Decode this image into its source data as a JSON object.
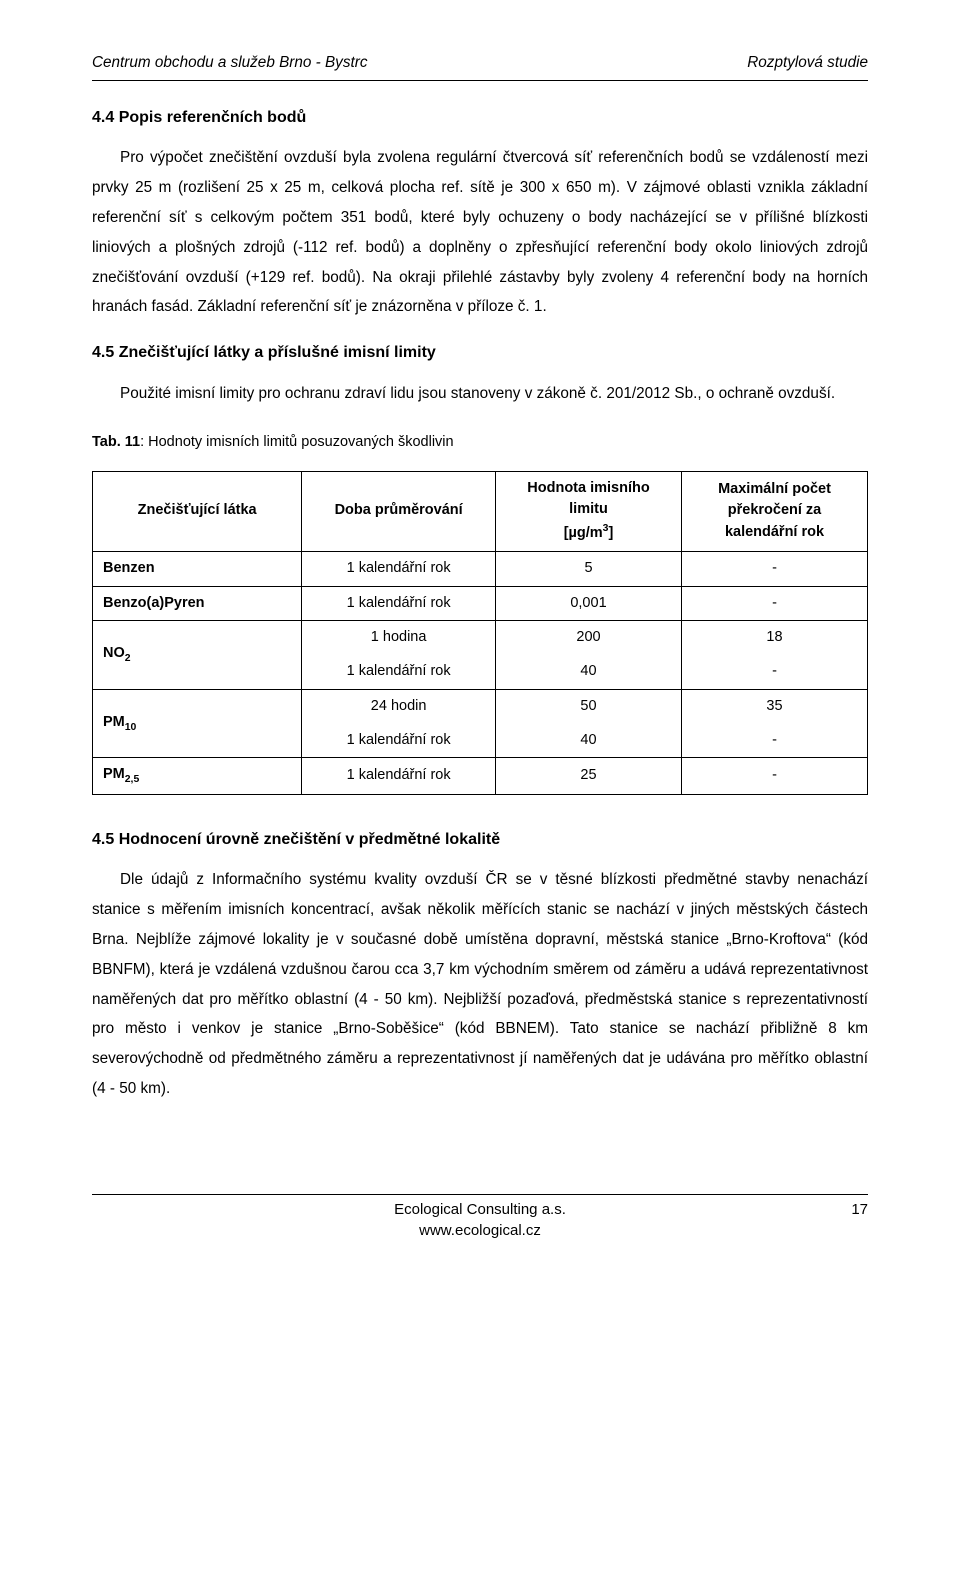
{
  "header": {
    "left": "Centrum obchodu a služeb Brno - Bystrc",
    "right": "Rozptylová studie"
  },
  "section44": {
    "title": "4.4 Popis referenčních bodů",
    "para": "Pro výpočet znečištění ovzduší byla zvolena regulární čtvercová síť referenčních bodů se vzdáleností mezi prvky 25 m (rozlišení 25 x 25 m, celková plocha ref. sítě je 300 x 650 m). V zájmové oblasti vznikla základní referenční síť s celkovým počtem 351 bodů, které byly ochuzeny o body nacházející se v přílišné blízkosti liniových a plošných zdrojů (-112 ref. bodů) a doplněny o zpřesňující referenční body okolo liniových zdrojů znečišťování ovzduší (+129 ref. bodů). Na okraji přilehlé zástavby byly zvoleny 4 referenční body na horních hranách fasád. Základní referenční síť je znázorněna v příloze č. 1."
  },
  "section45a": {
    "title": "4.5  Znečišťující látky a příslušné imisní limity",
    "para": "Použité imisní limity pro ochranu zdraví lidu jsou stanoveny v zákoně č. 201/2012 Sb., o ochraně ovzduší."
  },
  "table": {
    "caption_bold": "Tab. 11",
    "caption_rest": ": Hodnoty imisních limitů posuzovaných škodlivin",
    "headers": {
      "c1": "Znečišťující látka",
      "c2": "Doba průměrování",
      "c3_l1": "Hodnota imisního",
      "c3_l2": "limitu",
      "c3_l3_a": "[µg/m",
      "c3_l3_b": "3",
      "c3_l3_c": "]",
      "c4_l1": "Maximální počet",
      "c4_l2": "překročení za",
      "c4_l3": "kalendářní rok"
    },
    "rows": [
      {
        "pollutant_html": "Benzen",
        "span": 1,
        "sub": [
          {
            "period": "1 kalendářní rok",
            "value": "5",
            "max": "-"
          }
        ]
      },
      {
        "pollutant_html": "Benzo(a)Pyren",
        "span": 1,
        "sub": [
          {
            "period": "1 kalendářní rok",
            "value": "0,001",
            "max": "-"
          }
        ]
      },
      {
        "pollutant_html": "NO<sub>2</sub>",
        "span": 2,
        "sub": [
          {
            "period": "1 hodina",
            "value": "200",
            "max": "18"
          },
          {
            "period": "1 kalendářní rok",
            "value": "40",
            "max": "-"
          }
        ]
      },
      {
        "pollutant_html": "PM<sub>10</sub>",
        "span": 2,
        "sub": [
          {
            "period": "24 hodin",
            "value": "50",
            "max": "35"
          },
          {
            "period": "1 kalendářní rok",
            "value": "40",
            "max": "-"
          }
        ]
      },
      {
        "pollutant_html": "PM<sub>2,5</sub>",
        "span": 1,
        "sub": [
          {
            "period": "1 kalendářní rok",
            "value": "25",
            "max": "-"
          }
        ]
      }
    ]
  },
  "section45b": {
    "title": "4.5 Hodnocení úrovně znečištění v předmětné lokalitě",
    "para": "Dle údajů z Informačního systému kvality ovzduší ČR se v těsné blízkosti předmětné stavby nenachází stanice s měřením imisních koncentrací, avšak několik měřících stanic se nachází v jiných městských částech Brna. Nejblíže zájmové lokality je v současné době umístěna dopravní, městská stanice „Brno-Kroftova“ (kód BBNFM), která je vzdálená vzdušnou čarou cca 3,7 km východním směrem od záměru a udává reprezentativnost naměřených dat pro měřítko oblastní (4 - 50 km). Nejbližší pozaďová, předměstská stanice s reprezentativností pro město i venkov je stanice „Brno-Soběšice“ (kód BBNEM). Tato stanice se nachází přibližně 8 km severovýchodně od předmětného záměru a reprezentativnost jí naměřených dat je udávána pro měřítko oblastní (4 - 50 km)."
  },
  "footer": {
    "line1": "Ecological Consulting a.s.",
    "line2": "www.ecological.cz",
    "page": "17"
  }
}
